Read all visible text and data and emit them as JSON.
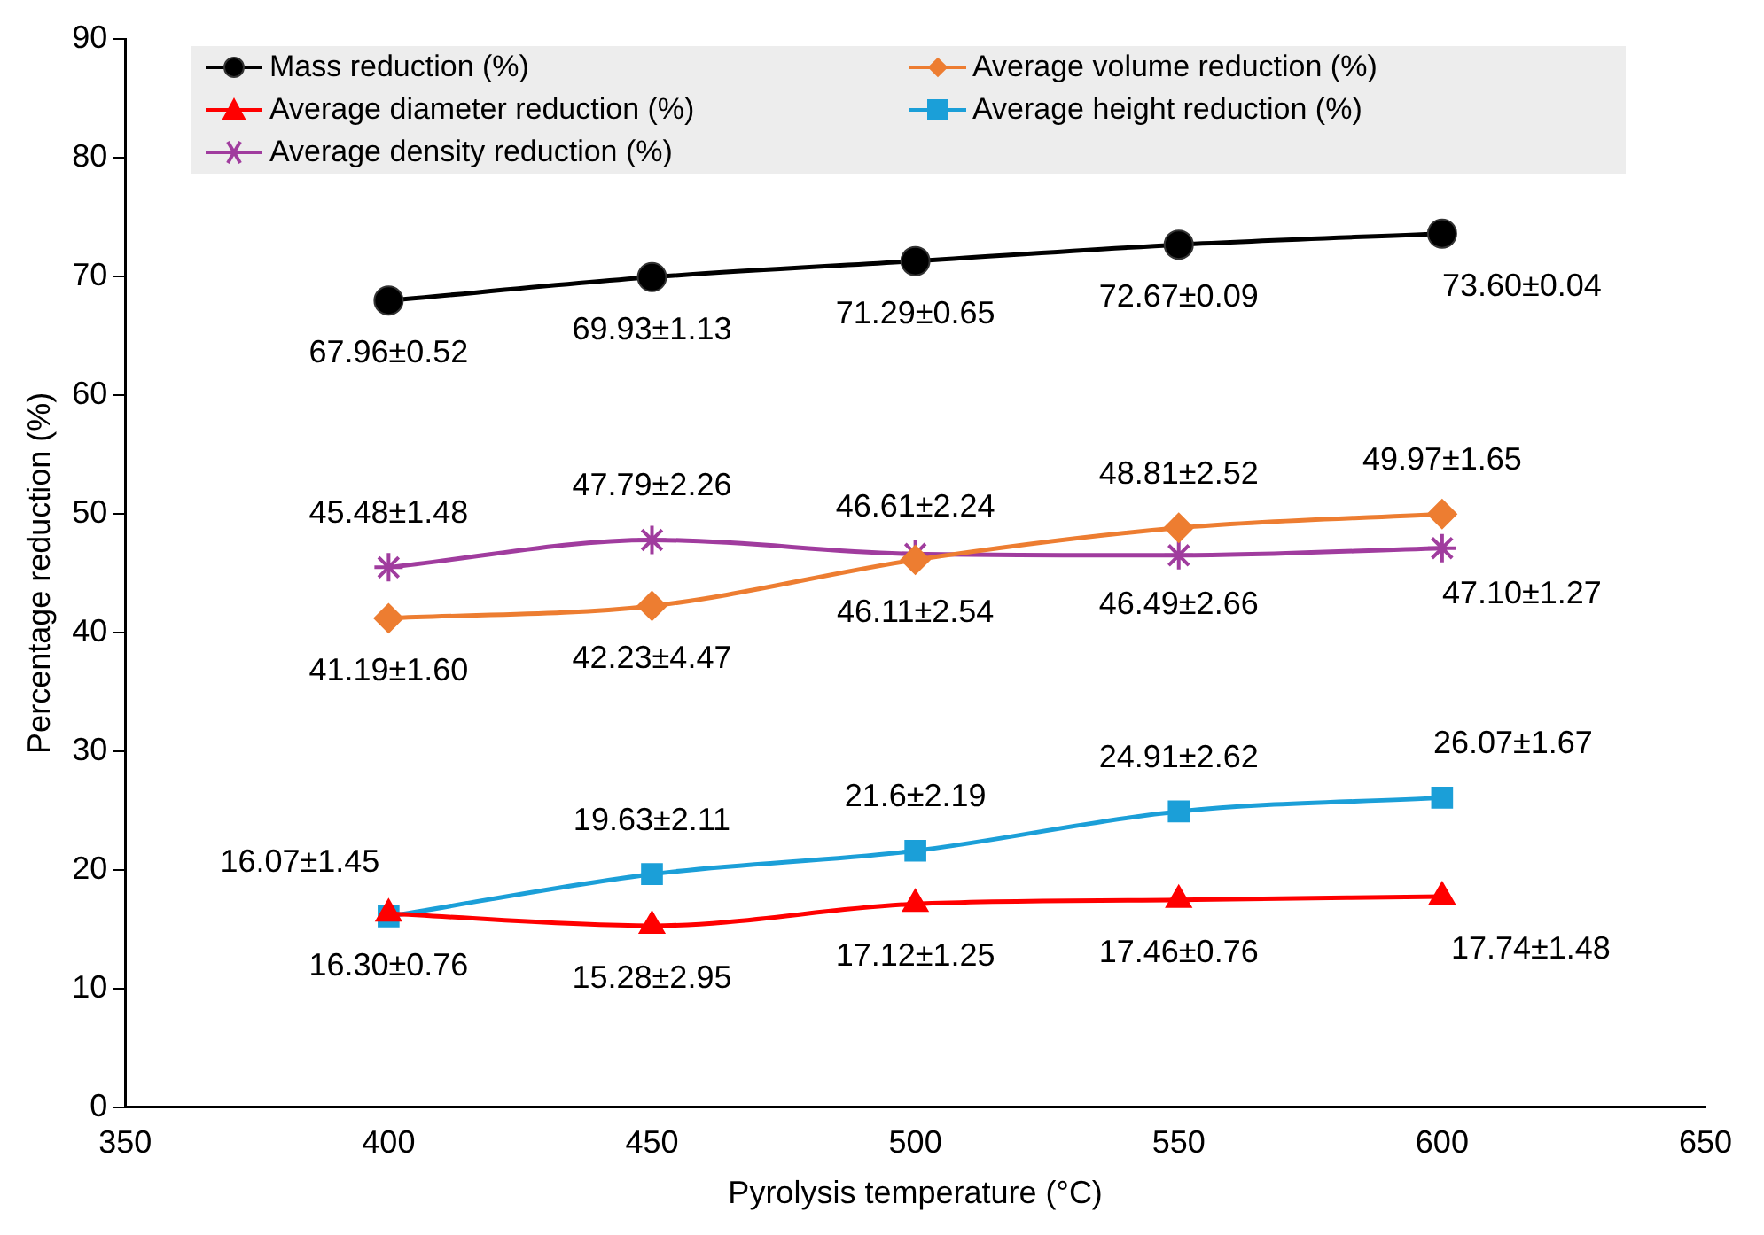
{
  "chart_data": {
    "type": "line",
    "xlabel": "Pyrolysis temperature (°C)",
    "ylabel": "Percentage reduction (%)",
    "x": [
      400,
      450,
      500,
      550,
      600
    ],
    "xlim": [
      350,
      650
    ],
    "xticks": [
      350,
      400,
      450,
      500,
      550,
      600,
      650
    ],
    "ylim": [
      0,
      90
    ],
    "yticks": [
      0,
      10,
      20,
      30,
      40,
      50,
      60,
      70,
      80,
      90
    ],
    "grid": false,
    "legend": "top",
    "line_style": "solid",
    "series": [
      {
        "name": "Mass reduction (%)",
        "color": "#000000",
        "marker": "circle",
        "values": [
          67.96,
          69.93,
          71.29,
          72.67,
          73.6
        ],
        "value_labels": [
          "67.96±0.52",
          "69.93±1.13",
          "71.29±0.65",
          "72.67±0.09",
          "73.60±0.04"
        ]
      },
      {
        "name": "Average volume reduction (%)",
        "color": "#ed7d31",
        "marker": "diamond",
        "values": [
          41.19,
          42.23,
          46.11,
          48.81,
          49.97
        ],
        "value_labels": [
          "41.19±1.60",
          "42.23±4.47",
          "46.11±2.54",
          "48.81±2.52",
          "49.97±1.65"
        ]
      },
      {
        "name": "Average diameter reduction (%)",
        "color": "#ff0000",
        "marker": "triangle",
        "values": [
          16.3,
          15.28,
          17.12,
          17.46,
          17.74
        ],
        "value_labels": [
          "16.30±0.76",
          "15.28±2.95",
          "17.12±1.25",
          "17.46±0.76",
          "17.74±1.48"
        ]
      },
      {
        "name": "Average height reduction (%)",
        "color": "#1b9fd8",
        "marker": "square",
        "values": [
          16.07,
          19.63,
          21.6,
          24.91,
          26.07
        ],
        "value_labels": [
          "16.07±1.45",
          "19.63±2.11",
          "21.6±2.19",
          "24.91±2.62",
          "26.07±1.67"
        ]
      },
      {
        "name": "Average density reduction (%)",
        "color": "#a03c9e",
        "marker": "cross",
        "values": [
          45.48,
          47.79,
          46.61,
          46.49,
          47.1
        ],
        "value_labels": [
          "45.48±1.48",
          "47.79±2.26",
          "46.61±2.24",
          "46.49±2.66",
          "47.10±1.27"
        ]
      }
    ]
  }
}
